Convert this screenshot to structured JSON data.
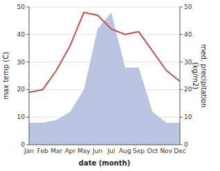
{
  "chart_data": {
    "type": "line",
    "categories": [
      "Jan",
      "Feb",
      "Mar",
      "Apr",
      "May",
      "Jun",
      "Jul",
      "Aug",
      "Sep",
      "Oct",
      "Nov",
      "Dec"
    ],
    "xlabel": "date (month)",
    "ylabel": "max temp (C)",
    "y2label": "med. precipitation\n(kg/m2)",
    "series": [
      {
        "type": "area",
        "axis": "y2",
        "color": "#b8c4e0",
        "values": [
          8,
          8,
          9,
          12,
          20,
          42,
          48,
          28,
          28,
          12,
          8,
          8
        ]
      },
      {
        "type": "line",
        "color": "#c0504d",
        "values": [
          19,
          20,
          27,
          36,
          48,
          47,
          42,
          40,
          41,
          34,
          27,
          23
        ]
      }
    ],
    "ylim": [
      0,
      50
    ],
    "yticks": [
      0,
      10,
      20,
      30,
      40,
      50
    ],
    "y2lim": [
      0,
      50
    ],
    "y2ticks": [
      0,
      10,
      20,
      30,
      40,
      50
    ],
    "grid": true
  }
}
